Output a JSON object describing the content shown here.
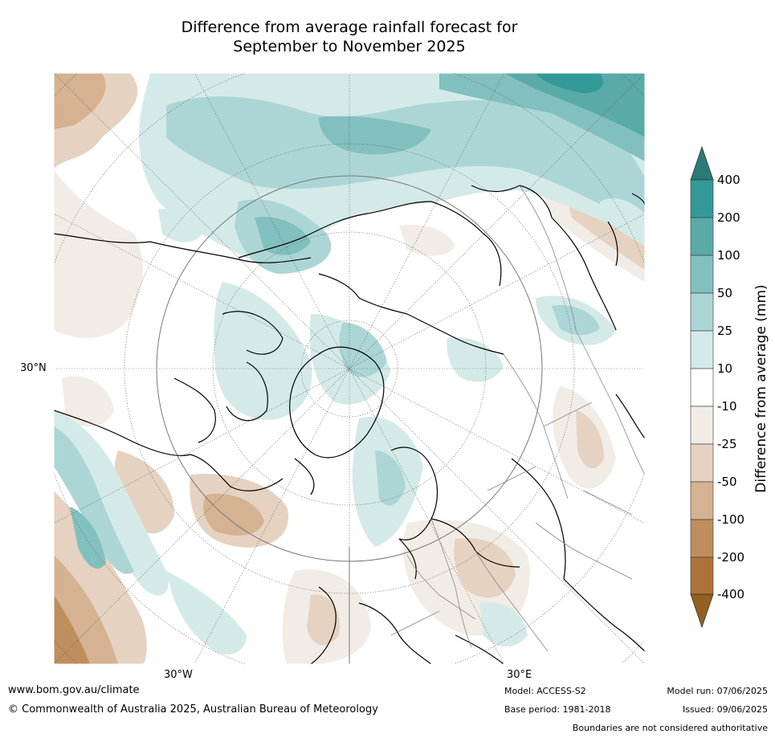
{
  "title_line1": "Difference from average rainfall forecast for",
  "title_line2": "September to November 2025",
  "axis_labels": {
    "lat_30n": "30°N",
    "lon_30w": "30°W",
    "lon_30e": "30°E"
  },
  "colorbar": {
    "title": "Difference from average (mm)",
    "levels": [
      "400",
      "200",
      "100",
      "50",
      "25",
      "10",
      "-10",
      "-25",
      "-50",
      "-100",
      "-200",
      "-400"
    ],
    "colors": {
      "gt400": "#2a7b78",
      "200_400": "#339a97",
      "100_200": "#5aaaa8",
      "50_100": "#82c0bf",
      "25_50": "#acd6d5",
      "10_25": "#d4eae9",
      "neutral": "#ffffff",
      "m10_m25": "#f2ece6",
      "m25_m50": "#e6d2c1",
      "m50_m100": "#d4b292",
      "m100_m200": "#bf8e5e",
      "m200_m400": "#ad733b",
      "lt_m400": "#95601f"
    }
  },
  "footer": {
    "url": "www.bom.gov.au/climate",
    "copyright": "© Commonwealth of Australia 2025, Australian Bureau of Meteorology",
    "model": "Model: ACCESS-S2",
    "base_period": "Base period: 1981-2018",
    "model_run": "Model run: 07/06/2025",
    "issued": "Issued: 09/06/2025",
    "boundaries": "Boundaries are not considered authoritative"
  }
}
